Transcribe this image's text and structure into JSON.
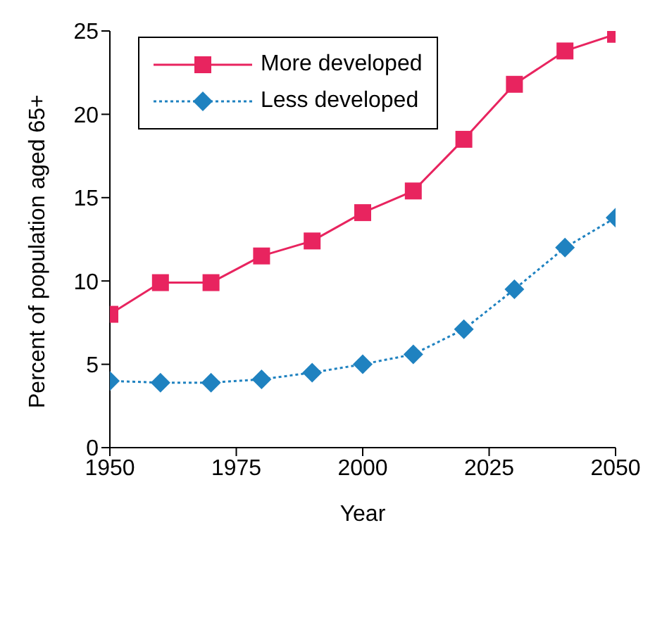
{
  "chart_data": {
    "type": "line",
    "xlabel": "Year",
    "ylabel": "Percent of population aged 65+",
    "x": [
      1950,
      1960,
      1970,
      1980,
      1990,
      2000,
      2010,
      2020,
      2030,
      2040,
      2050
    ],
    "xlim": [
      1950,
      2050
    ],
    "xticks": [
      1950,
      1975,
      2000,
      2025,
      2050
    ],
    "ylim": [
      0,
      25
    ],
    "yticks": [
      0,
      5,
      10,
      15,
      20,
      25
    ],
    "grid": false,
    "legend": "top left",
    "series": [
      {
        "name": "More developed",
        "color": "#e8245f",
        "marker": "square",
        "line_style": "solid",
        "values": [
          8.0,
          9.9,
          9.9,
          11.5,
          12.4,
          14.1,
          15.4,
          18.5,
          21.8,
          23.8,
          24.8
        ]
      },
      {
        "name": "Less developed",
        "color": "#1f82c0",
        "marker": "diamond",
        "line_style": "dotted",
        "values": [
          4.0,
          3.9,
          3.9,
          4.1,
          4.5,
          5.0,
          5.6,
          7.1,
          9.5,
          12.0,
          13.8
        ]
      }
    ]
  }
}
